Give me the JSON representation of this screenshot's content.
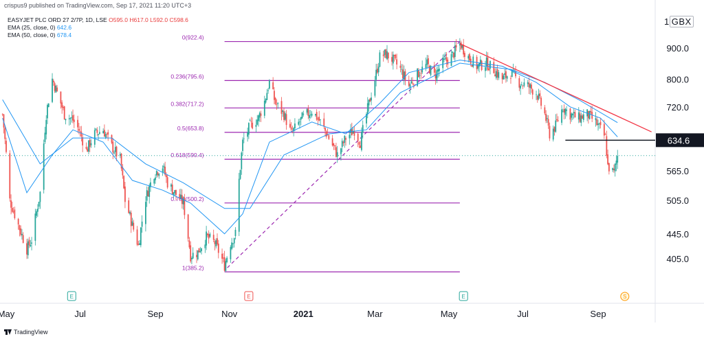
{
  "header": {
    "published": "crispus9 published on TradingView.com, Sep 17, 2021 11:20 UTC+3",
    "symbol": "EASYJET PLC ORD 27 2/7P, 1D, LSE",
    "ohlc": "O595.0 H617.0 L592.0 C598.6",
    "ema25_label": "EMA (25, close, 0)",
    "ema25_value": "642.6",
    "ema50_label": "EMA (50, close, 0)",
    "ema50_value": "678.4",
    "currency": "GBX"
  },
  "footer": {
    "brand": "TradingView"
  },
  "colors": {
    "up": "#26a69a",
    "down": "#ef5350",
    "ema": "#2196f3",
    "fib": "#9c27b0",
    "trend": "#f23645",
    "support": "#131722"
  },
  "chart_data": {
    "type": "candlestick",
    "title": "",
    "y_axis": {
      "ticks": [
        405,
        445,
        505,
        565,
        720,
        800,
        900
      ],
      "tick_labels": [
        "405.0",
        "445.0",
        "505.0",
        "565.0",
        "720.0",
        "800.0",
        "900.0"
      ],
      "scale": "log",
      "unit": "GBX"
    },
    "x_axis": {
      "tick_labels": [
        "May",
        "Jul",
        "Sep",
        "Nov",
        "2021",
        "Mar",
        "May",
        "Jul",
        "Sep"
      ],
      "bold_label": "2021"
    },
    "price_line": {
      "value": 634.6,
      "label": "634.6",
      "start_date": "2021-08-05"
    },
    "current_price": 598.6,
    "fibonacci": [
      {
        "ratio": "0",
        "price": 922.4,
        "label": "0(922.4)"
      },
      {
        "ratio": "0.236",
        "price": 795.6,
        "label": "0.236(795.6)"
      },
      {
        "ratio": "0.382",
        "price": 717.2,
        "label": "0.382(717.2)"
      },
      {
        "ratio": "0.5",
        "price": 653.8,
        "label": "0.5(653.8)"
      },
      {
        "ratio": "0.618",
        "price": 590.4,
        "label": "0.618(590.4)"
      },
      {
        "ratio": "0.786",
        "price": 500.2,
        "label": "0.786(500.2)"
      },
      {
        "ratio": "1",
        "price": 385.2,
        "label": "1(385.2)"
      }
    ],
    "fib_range": {
      "start": "2020-10-28",
      "end": "2021-05-10"
    },
    "trendline": {
      "start": {
        "date": "2021-05-10",
        "price": 915
      },
      "end": {
        "date": "2021-10-15",
        "price": 655
      }
    },
    "event_markers": [
      {
        "date": "2020-06-24",
        "label": "E",
        "kind": "earnings-up"
      },
      {
        "date": "2020-11-17",
        "label": "E",
        "kind": "earnings-down"
      },
      {
        "date": "2021-05-13",
        "label": "E",
        "kind": "earnings-up"
      },
      {
        "date": "2021-09-23",
        "label": "S",
        "kind": "split"
      }
    ],
    "path_points": [
      {
        "date": "2020-04-28",
        "price": 700
      },
      {
        "date": "2020-05-04",
        "price": 505
      },
      {
        "date": "2020-05-11",
        "price": 460
      },
      {
        "date": "2020-05-18",
        "price": 420
      },
      {
        "date": "2020-05-22",
        "price": 435
      },
      {
        "date": "2020-05-29",
        "price": 520
      },
      {
        "date": "2020-06-03",
        "price": 700
      },
      {
        "date": "2020-06-08",
        "price": 800
      },
      {
        "date": "2020-06-12",
        "price": 760
      },
      {
        "date": "2020-06-18",
        "price": 700
      },
      {
        "date": "2020-06-25",
        "price": 685
      },
      {
        "date": "2020-06-30",
        "price": 660
      },
      {
        "date": "2020-07-06",
        "price": 610
      },
      {
        "date": "2020-07-13",
        "price": 650
      },
      {
        "date": "2020-07-20",
        "price": 660
      },
      {
        "date": "2020-07-27",
        "price": 620
      },
      {
        "date": "2020-08-03",
        "price": 590
      },
      {
        "date": "2020-08-07",
        "price": 505
      },
      {
        "date": "2020-08-13",
        "price": 460
      },
      {
        "date": "2020-08-18",
        "price": 425
      },
      {
        "date": "2020-08-24",
        "price": 510
      },
      {
        "date": "2020-08-31",
        "price": 560
      },
      {
        "date": "2020-09-07",
        "price": 575
      },
      {
        "date": "2020-09-11",
        "price": 540
      },
      {
        "date": "2020-09-17",
        "price": 520
      },
      {
        "date": "2020-09-24",
        "price": 500
      },
      {
        "date": "2020-09-30",
        "price": 410
      },
      {
        "date": "2020-10-06",
        "price": 415
      },
      {
        "date": "2020-10-13",
        "price": 440
      },
      {
        "date": "2020-10-20",
        "price": 430
      },
      {
        "date": "2020-10-28",
        "price": 395
      },
      {
        "date": "2020-11-02",
        "price": 430
      },
      {
        "date": "2020-11-06",
        "price": 445
      },
      {
        "date": "2020-11-09",
        "price": 545
      },
      {
        "date": "2020-11-12",
        "price": 630
      },
      {
        "date": "2020-11-18",
        "price": 670
      },
      {
        "date": "2020-11-25",
        "price": 690
      },
      {
        "date": "2020-11-30",
        "price": 735
      },
      {
        "date": "2020-12-04",
        "price": 790
      },
      {
        "date": "2020-12-09",
        "price": 730
      },
      {
        "date": "2020-12-16",
        "price": 700
      },
      {
        "date": "2020-12-22",
        "price": 650
      },
      {
        "date": "2020-12-31",
        "price": 690
      },
      {
        "date": "2021-01-08",
        "price": 710
      },
      {
        "date": "2021-01-15",
        "price": 680
      },
      {
        "date": "2021-01-22",
        "price": 640
      },
      {
        "date": "2021-01-29",
        "price": 600
      },
      {
        "date": "2021-02-05",
        "price": 640
      },
      {
        "date": "2021-02-12",
        "price": 660
      },
      {
        "date": "2021-02-17",
        "price": 630
      },
      {
        "date": "2021-02-22",
        "price": 700
      },
      {
        "date": "2021-03-01",
        "price": 800
      },
      {
        "date": "2021-03-05",
        "price": 870
      },
      {
        "date": "2021-03-10",
        "price": 880
      },
      {
        "date": "2021-03-16",
        "price": 860
      },
      {
        "date": "2021-03-22",
        "price": 830
      },
      {
        "date": "2021-03-29",
        "price": 780
      },
      {
        "date": "2021-04-06",
        "price": 820
      },
      {
        "date": "2021-04-13",
        "price": 845
      },
      {
        "date": "2021-04-19",
        "price": 810
      },
      {
        "date": "2021-04-26",
        "price": 850
      },
      {
        "date": "2021-05-03",
        "price": 870
      },
      {
        "date": "2021-05-10",
        "price": 915
      },
      {
        "date": "2021-05-17",
        "price": 870
      },
      {
        "date": "2021-05-24",
        "price": 840
      },
      {
        "date": "2021-06-01",
        "price": 850
      },
      {
        "date": "2021-06-07",
        "price": 830
      },
      {
        "date": "2021-06-14",
        "price": 800
      },
      {
        "date": "2021-06-21",
        "price": 820
      },
      {
        "date": "2021-06-28",
        "price": 790
      },
      {
        "date": "2021-07-05",
        "price": 780
      },
      {
        "date": "2021-07-12",
        "price": 760
      },
      {
        "date": "2021-07-19",
        "price": 700
      },
      {
        "date": "2021-07-23",
        "price": 650
      },
      {
        "date": "2021-07-28",
        "price": 670
      },
      {
        "date": "2021-08-03",
        "price": 720
      },
      {
        "date": "2021-08-09",
        "price": 700
      },
      {
        "date": "2021-08-16",
        "price": 690
      },
      {
        "date": "2021-08-23",
        "price": 700
      },
      {
        "date": "2021-08-30",
        "price": 680
      },
      {
        "date": "2021-09-03",
        "price": 660
      },
      {
        "date": "2021-09-07",
        "price": 640
      },
      {
        "date": "2021-09-09",
        "price": 575
      },
      {
        "date": "2021-09-14",
        "price": 560
      },
      {
        "date": "2021-09-17",
        "price": 598.6
      }
    ],
    "ema25_points": [
      {
        "date": "2020-04-28",
        "price": 690
      },
      {
        "date": "2020-05-18",
        "price": 520
      },
      {
        "date": "2020-06-08",
        "price": 600
      },
      {
        "date": "2020-06-25",
        "price": 660
      },
      {
        "date": "2020-07-20",
        "price": 630
      },
      {
        "date": "2020-08-13",
        "price": 545
      },
      {
        "date": "2020-09-07",
        "price": 525
      },
      {
        "date": "2020-09-30",
        "price": 500
      },
      {
        "date": "2020-10-28",
        "price": 445
      },
      {
        "date": "2020-11-12",
        "price": 480
      },
      {
        "date": "2020-12-04",
        "price": 630
      },
      {
        "date": "2021-01-08",
        "price": 680
      },
      {
        "date": "2021-02-05",
        "price": 650
      },
      {
        "date": "2021-03-05",
        "price": 730
      },
      {
        "date": "2021-03-29",
        "price": 820
      },
      {
        "date": "2021-05-10",
        "price": 860
      },
      {
        "date": "2021-06-14",
        "price": 840
      },
      {
        "date": "2021-07-12",
        "price": 790
      },
      {
        "date": "2021-08-09",
        "price": 720
      },
      {
        "date": "2021-09-03",
        "price": 690
      },
      {
        "date": "2021-09-17",
        "price": 642.6
      }
    ],
    "ema50_points": [
      {
        "date": "2020-04-28",
        "price": 740
      },
      {
        "date": "2020-05-29",
        "price": 580
      },
      {
        "date": "2020-06-25",
        "price": 640
      },
      {
        "date": "2020-07-27",
        "price": 640
      },
      {
        "date": "2020-08-24",
        "price": 580
      },
      {
        "date": "2020-09-24",
        "price": 540
      },
      {
        "date": "2020-10-28",
        "price": 490
      },
      {
        "date": "2020-11-18",
        "price": 490
      },
      {
        "date": "2020-12-16",
        "price": 600
      },
      {
        "date": "2021-01-22",
        "price": 650
      },
      {
        "date": "2021-02-22",
        "price": 660
      },
      {
        "date": "2021-03-22",
        "price": 760
      },
      {
        "date": "2021-05-10",
        "price": 850
      },
      {
        "date": "2021-06-21",
        "price": 830
      },
      {
        "date": "2021-07-19",
        "price": 790
      },
      {
        "date": "2021-08-16",
        "price": 740
      },
      {
        "date": "2021-09-17",
        "price": 678.4
      }
    ],
    "grid": false
  }
}
